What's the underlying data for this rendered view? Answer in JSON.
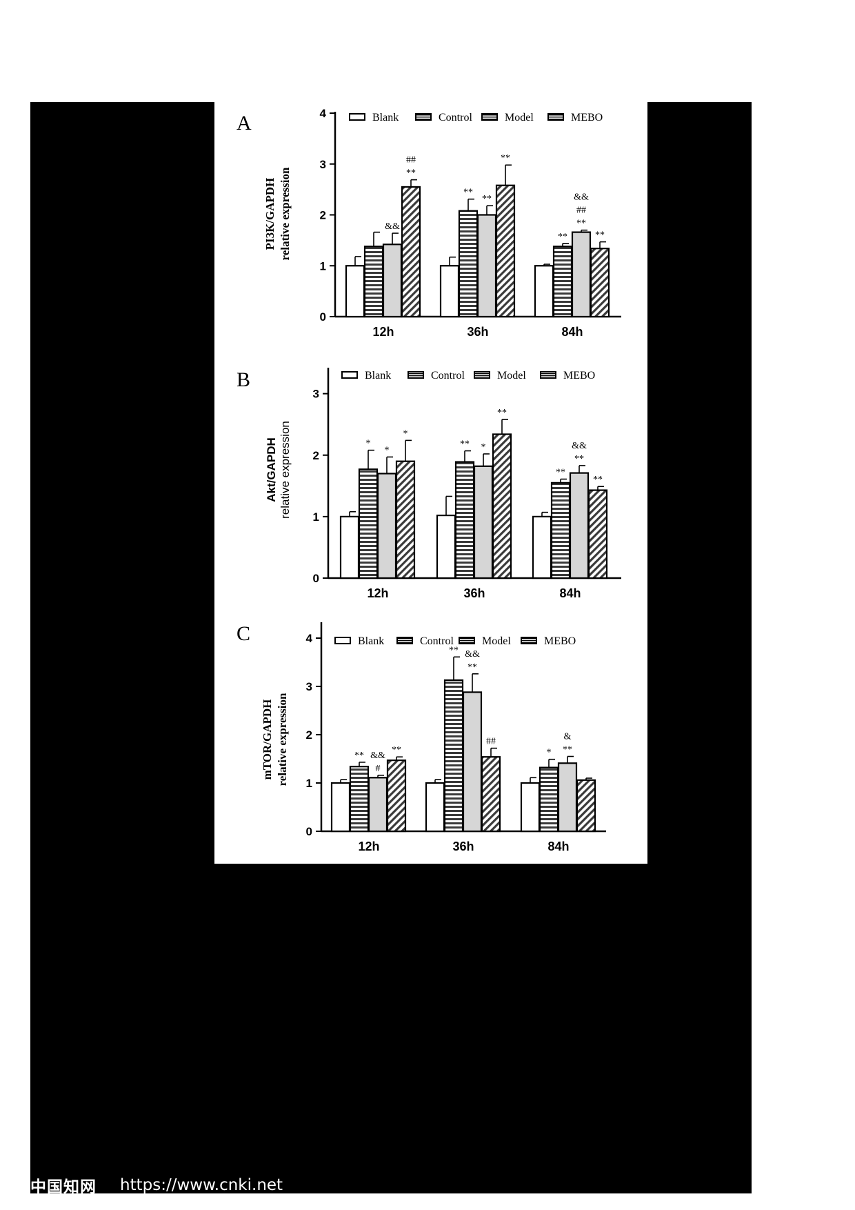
{
  "page": {
    "watermark_cn": "中国知网",
    "watermark_url": "https://www.cnki.net"
  },
  "legend": [
    "Blank",
    "Control",
    "Model",
    "MEBO"
  ],
  "groups": [
    "12h",
    "36h",
    "84h"
  ],
  "chart_data": [
    {
      "type": "bar",
      "panel_label": "A",
      "ylabel_line1": "PI3K/GAPDH",
      "ylabel_line2": "relative expression",
      "ylabel_bold_serif": true,
      "ylim": [
        0,
        4
      ],
      "yticks": [
        0,
        1,
        2,
        3,
        4
      ],
      "categories": [
        "12h",
        "36h",
        "84h"
      ],
      "series": [
        {
          "name": "Blank",
          "pattern": "white",
          "values": [
            1.0,
            1.0,
            1.0
          ],
          "errors": [
            0.18,
            0.17,
            0.03
          ]
        },
        {
          "name": "Control",
          "pattern": "hlines",
          "values": [
            1.38,
            2.08,
            1.38
          ],
          "errors": [
            0.28,
            0.23,
            0.06
          ]
        },
        {
          "name": "Model",
          "pattern": "gray",
          "values": [
            1.42,
            2.0,
            1.66
          ],
          "errors": [
            0.22,
            0.18,
            0.04
          ]
        },
        {
          "name": "MEBO",
          "pattern": "diag",
          "values": [
            2.55,
            2.58,
            1.34
          ],
          "errors": [
            0.14,
            0.4,
            0.13
          ]
        }
      ],
      "annotations": [
        {
          "group": 0,
          "series": 2,
          "lines": [
            "&&"
          ]
        },
        {
          "group": 0,
          "series": 3,
          "lines": [
            "##",
            "**"
          ]
        },
        {
          "group": 1,
          "series": 1,
          "lines": [
            "**"
          ]
        },
        {
          "group": 1,
          "series": 2,
          "lines": [
            "**"
          ]
        },
        {
          "group": 1,
          "series": 3,
          "lines": [
            "**"
          ]
        },
        {
          "group": 2,
          "series": 1,
          "lines": [
            "**"
          ]
        },
        {
          "group": 2,
          "series": 2,
          "lines": [
            "&&",
            "##",
            "**"
          ]
        },
        {
          "group": 2,
          "series": 3,
          "lines": [
            "**"
          ]
        }
      ]
    },
    {
      "type": "bar",
      "panel_label": "B",
      "ylabel_line1": "Akt/GAPDH",
      "ylabel_line2": "relative expression",
      "ylabel_bold_serif": false,
      "ylim": [
        0,
        3.4
      ],
      "yticks": [
        0,
        1,
        2,
        3
      ],
      "categories": [
        "12h",
        "36h",
        "84h"
      ],
      "series": [
        {
          "name": "Blank",
          "pattern": "white",
          "values": [
            1.0,
            1.02,
            1.0
          ],
          "errors": [
            0.08,
            0.31,
            0.07
          ]
        },
        {
          "name": "Control",
          "pattern": "hlines",
          "values": [
            1.77,
            1.89,
            1.55
          ],
          "errors": [
            0.31,
            0.18,
            0.06
          ]
        },
        {
          "name": "Model",
          "pattern": "gray",
          "values": [
            1.7,
            1.82,
            1.71
          ],
          "errors": [
            0.27,
            0.2,
            0.12
          ]
        },
        {
          "name": "MEBO",
          "pattern": "diag",
          "values": [
            1.9,
            2.34,
            1.43
          ],
          "errors": [
            0.34,
            0.24,
            0.06
          ]
        }
      ],
      "annotations": [
        {
          "group": 0,
          "series": 1,
          "lines": [
            "*"
          ]
        },
        {
          "group": 0,
          "series": 2,
          "lines": [
            "*"
          ]
        },
        {
          "group": 0,
          "series": 3,
          "lines": [
            "*"
          ]
        },
        {
          "group": 1,
          "series": 1,
          "lines": [
            "**"
          ]
        },
        {
          "group": 1,
          "series": 2,
          "lines": [
            "*"
          ]
        },
        {
          "group": 1,
          "series": 3,
          "lines": [
            "**"
          ]
        },
        {
          "group": 2,
          "series": 1,
          "lines": [
            "**"
          ]
        },
        {
          "group": 2,
          "series": 2,
          "lines": [
            "&&",
            "**"
          ]
        },
        {
          "group": 2,
          "series": 3,
          "lines": [
            "**"
          ]
        }
      ]
    },
    {
      "type": "bar",
      "panel_label": "C",
      "ylabel_line1": "mTOR/GAPDH",
      "ylabel_line2": "relative expression",
      "ylabel_bold_serif": true,
      "ylim": [
        0,
        4.3
      ],
      "yticks": [
        0,
        1,
        2,
        3,
        4
      ],
      "categories": [
        "12h",
        "36h",
        "84h"
      ],
      "series": [
        {
          "name": "Blank",
          "pattern": "white",
          "values": [
            1.0,
            1.0,
            1.0
          ],
          "errors": [
            0.07,
            0.07,
            0.11
          ]
        },
        {
          "name": "Control",
          "pattern": "hlines",
          "values": [
            1.34,
            3.13,
            1.32
          ],
          "errors": [
            0.09,
            0.48,
            0.17
          ]
        },
        {
          "name": "Model",
          "pattern": "gray",
          "values": [
            1.11,
            2.88,
            1.41
          ],
          "errors": [
            0.05,
            0.38,
            0.14
          ]
        },
        {
          "name": "MEBO",
          "pattern": "diag",
          "values": [
            1.47,
            1.54,
            1.06
          ],
          "errors": [
            0.07,
            0.18,
            0.04
          ]
        }
      ],
      "annotations": [
        {
          "group": 0,
          "series": 1,
          "lines": [
            "**"
          ]
        },
        {
          "group": 0,
          "series": 2,
          "lines": [
            "&&",
            "#"
          ]
        },
        {
          "group": 0,
          "series": 3,
          "lines": [
            "**"
          ]
        },
        {
          "group": 1,
          "series": 1,
          "lines": [
            "**"
          ]
        },
        {
          "group": 1,
          "series": 2,
          "lines": [
            "&&",
            "**"
          ]
        },
        {
          "group": 1,
          "series": 3,
          "lines": [
            "##"
          ]
        },
        {
          "group": 2,
          "series": 1,
          "lines": [
            "*"
          ]
        },
        {
          "group": 2,
          "series": 2,
          "lines": [
            "&",
            "**"
          ]
        }
      ]
    }
  ]
}
